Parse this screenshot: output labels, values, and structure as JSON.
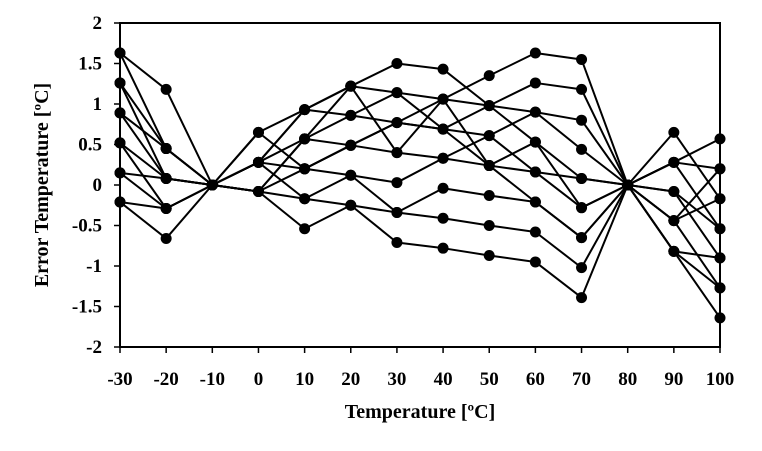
{
  "chart_data": {
    "type": "line",
    "title": "",
    "xlabel": "Temperature [ºC]",
    "ylabel": "Error Temperature [ºC]",
    "xlim": [
      -30,
      100
    ],
    "ylim": [
      -2,
      2
    ],
    "x_ticks": [
      -30,
      -20,
      -10,
      0,
      10,
      20,
      30,
      40,
      50,
      60,
      70,
      80,
      90,
      100
    ],
    "x_tick_labels": [
      "-30",
      "-20",
      "-10",
      "0",
      "10",
      "20",
      "30",
      "40",
      "50",
      "60",
      "70",
      "80",
      "90",
      "100"
    ],
    "y_ticks": [
      -2,
      -1.5,
      -1,
      -0.5,
      0,
      0.5,
      1,
      1.5,
      2
    ],
    "y_tick_labels": [
      "-2",
      "-1.5",
      "-1",
      "-0.5",
      "0",
      "0.5",
      "1",
      "1.5",
      "2"
    ],
    "grid": false,
    "legend": "none",
    "marker": "filled-circle",
    "line_color": "#000000",
    "x": [
      -30,
      -20,
      -10,
      0,
      10,
      20,
      30,
      40,
      50,
      60,
      70,
      80,
      90,
      100
    ],
    "series": [
      {
        "values": [
          1.63,
          1.18,
          0,
          0.65,
          0.93,
          1.22,
          1.5,
          1.43,
          0.98,
          0.9,
          0.8,
          0,
          0.65,
          -0.17
        ]
      },
      {
        "values": [
          1.63,
          0.45,
          0,
          -0.08,
          0.57,
          1.22,
          1.14,
          1.06,
          1.35,
          1.63,
          1.55,
          0,
          0.28,
          -0.54
        ]
      },
      {
        "values": [
          1.26,
          0.45,
          0,
          0.28,
          0.93,
          0.86,
          0.77,
          1.06,
          0.98,
          1.26,
          1.18,
          0,
          -0.08,
          -0.9
        ]
      },
      {
        "values": [
          1.26,
          0.08,
          0,
          0.28,
          0.57,
          0.49,
          0.77,
          0.69,
          0.61,
          0.9,
          0.44,
          0,
          -0.44,
          -1.27
        ]
      },
      {
        "values": [
          0.89,
          0.08,
          0,
          -0.08,
          0.2,
          0.49,
          0.4,
          0.33,
          0.24,
          0.53,
          0.08,
          0,
          -0.82,
          -1.64
        ]
      },
      {
        "values": [
          0.89,
          0.45,
          0,
          0.28,
          0.2,
          0.12,
          0.03,
          0.33,
          0.61,
          0.16,
          -0.28,
          0,
          0.28,
          0.2
        ]
      },
      {
        "values": [
          0.52,
          -0.29,
          0,
          -0.08,
          -0.17,
          -0.25,
          -0.34,
          -0.04,
          -0.13,
          -0.21,
          -0.65,
          0,
          -0.08,
          -0.54
        ]
      },
      {
        "values": [
          0.52,
          0.08,
          0,
          0.65,
          0.2,
          0.49,
          0.77,
          0.69,
          0.24,
          0.16,
          0.08,
          0,
          0.28,
          0.57
        ]
      },
      {
        "values": [
          0.15,
          -0.29,
          0,
          0.28,
          -0.17,
          0.12,
          -0.34,
          -0.41,
          -0.5,
          -0.58,
          -1.02,
          0,
          -0.44,
          -0.17
        ]
      },
      {
        "values": [
          -0.21,
          -0.66,
          0,
          -0.08,
          -0.54,
          -0.25,
          -0.71,
          -0.78,
          -0.87,
          -0.95,
          -1.39,
          0,
          -0.82,
          -0.9
        ]
      },
      {
        "values": [
          0.15,
          0.08,
          0,
          -0.08,
          0.57,
          0.86,
          1.14,
          0.69,
          0.98,
          0.53,
          -0.28,
          0,
          -0.44,
          0.2
        ]
      },
      {
        "values": [
          -0.21,
          -0.29,
          0,
          0.28,
          0.93,
          1.22,
          0.4,
          1.06,
          0.24,
          -0.21,
          -0.65,
          0,
          -0.82,
          -1.27
        ]
      }
    ]
  }
}
